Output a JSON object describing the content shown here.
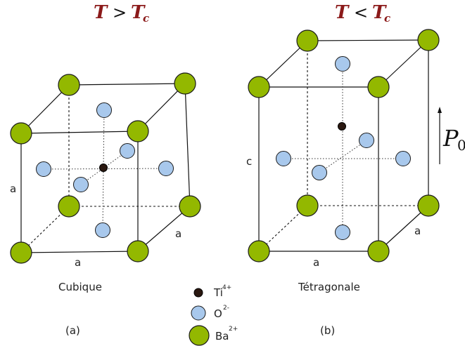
{
  "left_panel": {
    "condition": {
      "T": "T",
      "op": ">",
      "Tc": "T",
      "Tc_sub": "c"
    },
    "edge_labels": [
      "a",
      "a",
      "a"
    ],
    "caption": "Cubique",
    "tag": "(a)"
  },
  "right_panel": {
    "condition": {
      "T": "T",
      "op": "<",
      "Tc": "T",
      "Tc_sub": "c"
    },
    "edge_labels": [
      "c",
      "a",
      "a"
    ],
    "caption": "Tétragonale",
    "tag": "(b)",
    "polarization": {
      "symbol": "P",
      "sub": "0"
    }
  },
  "legend": [
    {
      "ion": "Ti",
      "charge": "4+",
      "color": "#2a1810"
    },
    {
      "ion": "O",
      "charge": "2-",
      "color": "#a8c8ec"
    },
    {
      "ion": "Ba",
      "charge": "2+",
      "color": "#93b800"
    }
  ],
  "colors": {
    "barium": "#93b800",
    "oxygen": "#a8c8ec",
    "titanium": "#2a1810"
  }
}
